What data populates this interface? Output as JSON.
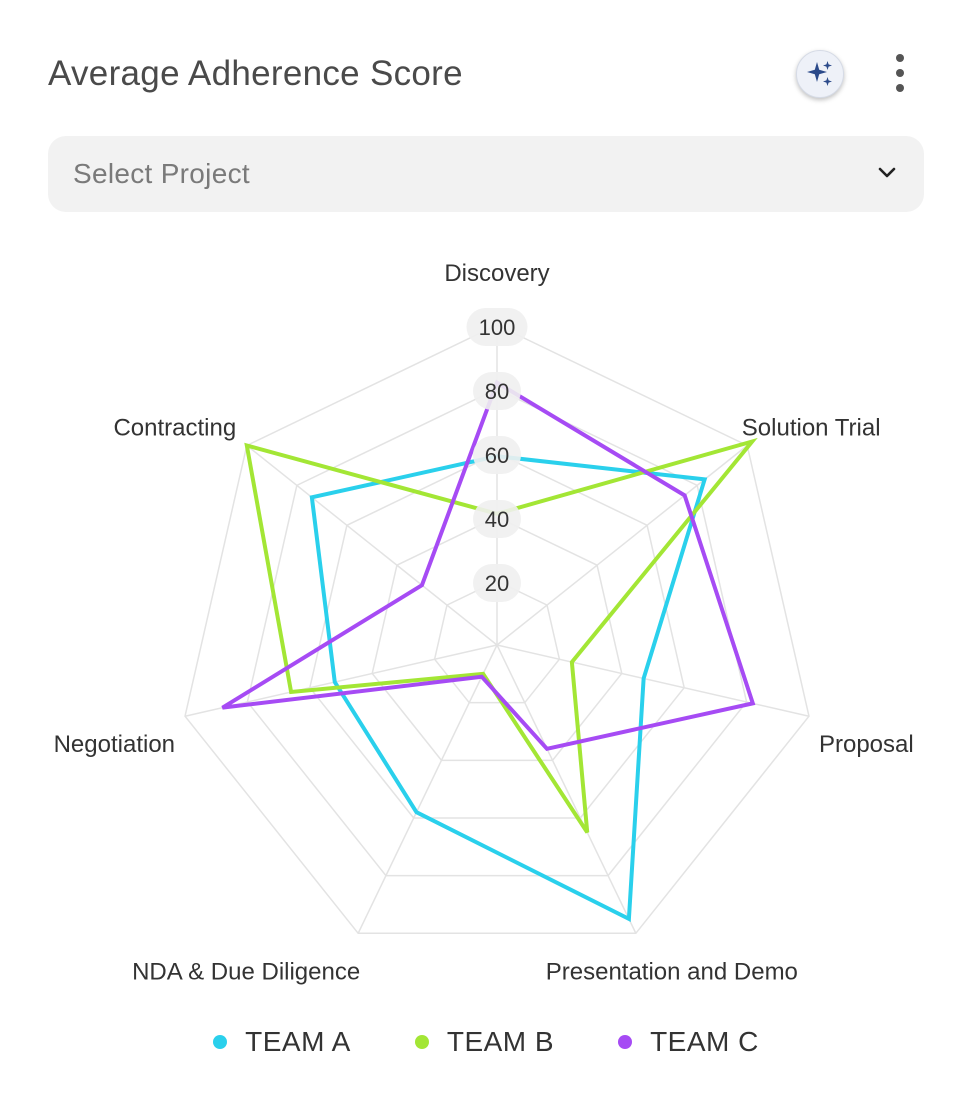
{
  "header": {
    "title": "Average Adherence Score",
    "ai_icon": "sparkles-icon",
    "menu_icon": "more-vertical-icon"
  },
  "project_select": {
    "placeholder": "Select Project",
    "icon": "chevron-down-icon"
  },
  "chart_data": {
    "type": "radar",
    "categories": [
      "Discovery",
      "Solution Trial",
      "Proposal",
      "Presentation and Demo",
      "NDA & Due Diligence",
      "Negotiation",
      "Contracting"
    ],
    "ticks": [
      20,
      40,
      60,
      80,
      100
    ],
    "range": [
      0,
      100
    ],
    "grid": true,
    "legend_position": "bottom",
    "series": [
      {
        "name": "TEAM A",
        "color": "#2ad0ec",
        "values": [
          59,
          83,
          47,
          95,
          58,
          52,
          74
        ]
      },
      {
        "name": "TEAM B",
        "color": "#a3e635",
        "values": [
          41,
          102,
          24,
          65,
          10,
          66,
          100
        ]
      },
      {
        "name": "TEAM C",
        "color": "#a64bf4",
        "values": [
          82,
          75,
          82,
          36,
          11,
          88,
          30
        ]
      }
    ]
  }
}
